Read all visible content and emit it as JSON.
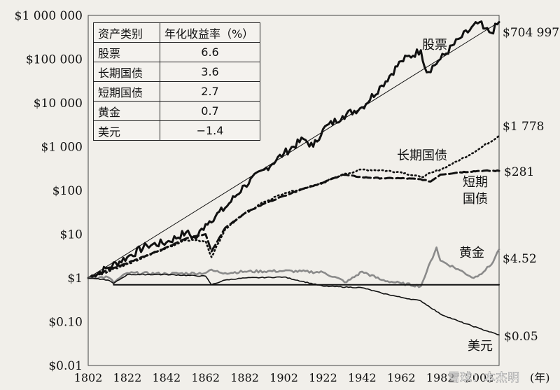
{
  "chart_data": {
    "type": "line",
    "y_scale": "log",
    "ylim": [
      0.01,
      1000000
    ],
    "xlim": [
      1802,
      2012
    ],
    "x_ticks": [
      "1802",
      "1822",
      "1842",
      "1862",
      "1882",
      "1902",
      "1922",
      "1942",
      "1962",
      "1982",
      "2002"
    ],
    "x_unit": "(年)",
    "y_ticks": [
      {
        "value": 1000000,
        "label": "$1 000 000"
      },
      {
        "value": 100000,
        "label": "$100 000"
      },
      {
        "value": 10000,
        "label": "$10 000"
      },
      {
        "value": 1000,
        "label": "$1 000"
      },
      {
        "value": 100,
        "label": "$100"
      },
      {
        "value": 10,
        "label": "$10"
      },
      {
        "value": 1,
        "label": "$1"
      },
      {
        "value": 0.1,
        "label": "$0.10"
      },
      {
        "value": 0.01,
        "label": "$0.01"
      }
    ],
    "table": {
      "headers": [
        "资产类别",
        "年化收益率（%）"
      ],
      "rows": [
        [
          "股票",
          "6.6"
        ],
        [
          "长期国债",
          "3.6"
        ],
        [
          "短期国债",
          "2.7"
        ],
        [
          "黄金",
          "0.7"
        ],
        [
          "美元",
          "−1.4"
        ]
      ]
    },
    "series": [
      {
        "name": "股票",
        "end_label": "$704 997",
        "color": "#111111",
        "style": "solid-thick",
        "x": [
          1802,
          1812,
          1822,
          1832,
          1842,
          1852,
          1857,
          1862,
          1872,
          1882,
          1892,
          1902,
          1912,
          1917,
          1922,
          1932,
          1942,
          1952,
          1962,
          1972,
          1975,
          1982,
          1992,
          2002,
          2004,
          2008,
          2012
        ],
        "y": [
          1,
          1.7,
          3,
          5.5,
          6.5,
          11,
          8,
          17,
          40,
          130,
          300,
          700,
          1500,
          1000,
          2500,
          5000,
          8000,
          25000,
          90000,
          160000,
          50000,
          100000,
          300000,
          700000,
          500000,
          400000,
          704997
        ]
      },
      {
        "name": "股票趋势",
        "color": "#111111",
        "style": "thin",
        "x": [
          1802,
          2012
        ],
        "y": [
          1,
          704997
        ]
      },
      {
        "name": "长期国债",
        "end_label": "$1 778",
        "color": "#111111",
        "style": "dotted",
        "x": [
          1802,
          1812,
          1822,
          1832,
          1842,
          1852,
          1862,
          1865,
          1872,
          1882,
          1892,
          1902,
          1912,
          1922,
          1932,
          1942,
          1952,
          1962,
          1972,
          1982,
          1992,
          2002,
          2012
        ],
        "y": [
          1,
          1.4,
          2.1,
          3.2,
          4.8,
          7.5,
          7,
          3,
          13,
          30,
          55,
          85,
          110,
          150,
          230,
          300,
          290,
          260,
          200,
          300,
          500,
          900,
          1778
        ]
      },
      {
        "name": "短期国债",
        "end_label": "$281",
        "color": "#111111",
        "style": "dashed",
        "x": [
          1802,
          1812,
          1822,
          1832,
          1842,
          1852,
          1862,
          1865,
          1872,
          1882,
          1892,
          1902,
          1912,
          1922,
          1932,
          1942,
          1952,
          1962,
          1972,
          1977,
          1982,
          1992,
          2002,
          2012
        ],
        "y": [
          1,
          1.5,
          2.2,
          3.3,
          5,
          8,
          10,
          4,
          14,
          30,
          50,
          75,
          110,
          150,
          230,
          200,
          190,
          190,
          180,
          160,
          230,
          260,
          280,
          281
        ]
      },
      {
        "name": "黄金",
        "end_label": "$4.52",
        "color": "#8a8a8a",
        "style": "solid",
        "x": [
          1802,
          1812,
          1815,
          1822,
          1842,
          1862,
          1864,
          1872,
          1882,
          1902,
          1922,
          1934,
          1942,
          1952,
          1962,
          1972,
          1975,
          1980,
          1982,
          1992,
          1999,
          2002,
          2008,
          2012
        ],
        "y": [
          1,
          1.05,
          0.8,
          1.3,
          1.25,
          1.3,
          1.5,
          1.3,
          1.4,
          1.45,
          1.35,
          0.8,
          1.4,
          0.9,
          0.75,
          0.65,
          1.4,
          5,
          2.5,
          1.5,
          1,
          1.2,
          2,
          4.52
        ]
      },
      {
        "name": "美元",
        "end_label": "$0.05",
        "color": "#111111",
        "style": "solid-thin",
        "x": [
          1802,
          1812,
          1815,
          1822,
          1842,
          1862,
          1865,
          1872,
          1882,
          1902,
          1922,
          1942,
          1952,
          1962,
          1972,
          1982,
          1992,
          2002,
          2012
        ],
        "y": [
          1,
          0.9,
          0.75,
          1.2,
          1.2,
          1.1,
          0.7,
          0.9,
          1,
          1.05,
          0.65,
          0.6,
          0.45,
          0.36,
          0.3,
          0.15,
          0.1,
          0.07,
          0.05
        ]
      },
      {
        "name": "基准线",
        "color": "#111111",
        "style": "reference",
        "x": [
          1815,
          2012
        ],
        "y": [
          0.7,
          0.7
        ]
      }
    ],
    "series_labels": {
      "股票": "股票",
      "长期国债": "长期国债",
      "短期国债_line1": "短期",
      "短期国债_line2": "国债",
      "黄金": "黄金",
      "美元": "美元"
    },
    "watermark": "雪球：本杰明"
  }
}
